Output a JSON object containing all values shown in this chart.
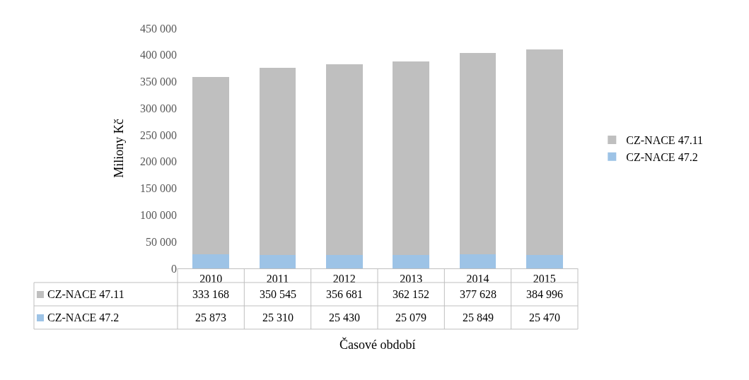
{
  "chart_data": {
    "type": "bar",
    "stacked": true,
    "ylabel": "Miliony Kč",
    "xlabel": "Časové období",
    "categories": [
      "2010",
      "2011",
      "2012",
      "2013",
      "2014",
      "2015"
    ],
    "series": [
      {
        "name": "CZ-NACE 47.2",
        "color": "#9dc3e6",
        "values": [
          25873,
          25310,
          25430,
          25079,
          25849,
          25470
        ]
      },
      {
        "name": "CZ-NACE 47.11",
        "color": "#bfbfbf",
        "values": [
          333168,
          350545,
          356681,
          362152,
          377628,
          384996
        ]
      }
    ],
    "ylim": [
      0,
      450000
    ],
    "yticks": [
      {
        "value": 0,
        "label": "0"
      },
      {
        "value": 50000,
        "label": "50 000"
      },
      {
        "value": 100000,
        "label": "100 000"
      },
      {
        "value": 150000,
        "label": "150 000"
      },
      {
        "value": 200000,
        "label": "200 000"
      },
      {
        "value": 250000,
        "label": "250 000"
      },
      {
        "value": 300000,
        "label": "300 000"
      },
      {
        "value": 350000,
        "label": "350 000"
      },
      {
        "value": 400000,
        "label": "400 000"
      },
      {
        "value": 450000,
        "label": "450 000"
      }
    ],
    "grid": false,
    "legend": "right",
    "data_labels": true
  }
}
